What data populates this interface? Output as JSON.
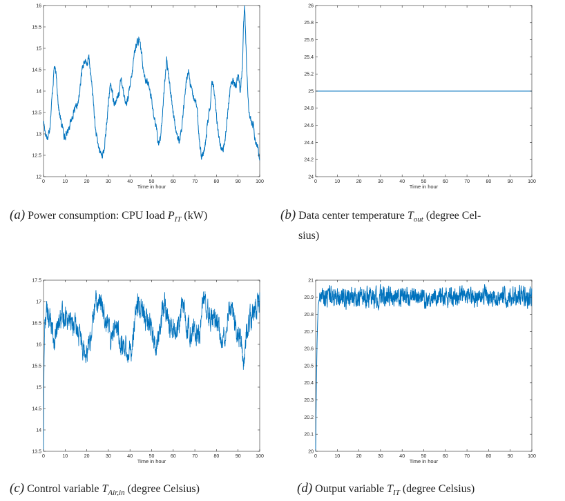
{
  "chart_data": [
    {
      "type": "line",
      "id": "a",
      "xlabel": "Time in hour",
      "xlim": [
        0,
        100
      ],
      "ylim": [
        12,
        16
      ],
      "xticks": [
        0,
        10,
        20,
        30,
        40,
        50,
        60,
        70,
        80,
        90,
        100
      ],
      "yticks": [
        "12",
        "12.5",
        "13",
        "13.5",
        "14",
        "14.5",
        "15",
        "15.5",
        "16"
      ],
      "yticks_values": [
        12,
        12.5,
        13,
        13.5,
        14,
        14.5,
        15,
        15.5,
        16
      ],
      "line_color": "#0072bd",
      "noise": 0.07,
      "series": [
        {
          "x": [
            0,
            1,
            2,
            3,
            4,
            5,
            6,
            7,
            8,
            9,
            10,
            12,
            14,
            16,
            17,
            18,
            19,
            20,
            21,
            22,
            23,
            24,
            25,
            26,
            27,
            28,
            29,
            30,
            31,
            32,
            33,
            34,
            35,
            36,
            37,
            38,
            39,
            40,
            41,
            42,
            43,
            44,
            45,
            46,
            47,
            48,
            49,
            50,
            51,
            52,
            53,
            54,
            55,
            56,
            57,
            58,
            59,
            60,
            61,
            62,
            63,
            64,
            65,
            66,
            67,
            68,
            69,
            70,
            71,
            72,
            73,
            74,
            75,
            76,
            77,
            78,
            79,
            80,
            81,
            82,
            83,
            84,
            85,
            86,
            87,
            88,
            89,
            90,
            91,
            92,
            92.5,
            93,
            94,
            95,
            96,
            97,
            98,
            99,
            100
          ],
          "y": [
            13.3,
            13.0,
            12.9,
            13.2,
            13.9,
            14.6,
            14.3,
            13.6,
            13.3,
            13.1,
            12.9,
            13.2,
            13.5,
            13.7,
            14.1,
            14.6,
            14.7,
            14.6,
            14.8,
            14.3,
            13.8,
            13.1,
            12.8,
            12.6,
            12.5,
            12.6,
            13.1,
            13.7,
            14.2,
            13.9,
            13.7,
            13.8,
            14.0,
            14.3,
            14.0,
            13.7,
            13.8,
            14.1,
            14.4,
            14.9,
            15.1,
            15.2,
            15.0,
            14.6,
            14.3,
            14.2,
            14.1,
            13.8,
            13.4,
            13.2,
            12.8,
            12.9,
            13.4,
            14.2,
            14.7,
            14.3,
            13.9,
            13.5,
            13.2,
            12.9,
            12.8,
            13.2,
            13.7,
            14.2,
            14.5,
            14.1,
            13.9,
            13.8,
            13.6,
            12.9,
            12.5,
            12.5,
            12.8,
            13.3,
            13.6,
            14.2,
            14.0,
            13.4,
            13.0,
            12.7,
            12.6,
            12.9,
            13.4,
            13.9,
            14.2,
            14.2,
            14.1,
            14.4,
            14.0,
            14.6,
            15.5,
            16.0,
            14.5,
            13.5,
            13.3,
            13.2,
            12.8,
            12.7,
            12.4
          ]
        }
      ]
    },
    {
      "type": "line",
      "id": "b",
      "xlabel": "Time in hour",
      "xlim": [
        0,
        100
      ],
      "ylim": [
        24,
        26
      ],
      "xticks": [
        0,
        10,
        20,
        30,
        40,
        50,
        60,
        70,
        80,
        90,
        100
      ],
      "yticks": [
        "24",
        "24.2",
        "24.4",
        "24.6",
        "24.8",
        "25",
        "25.2",
        "25.4",
        "25.6",
        "25.8",
        "26"
      ],
      "yticks_values": [
        24,
        24.2,
        24.4,
        24.6,
        24.8,
        25,
        25.2,
        25.4,
        25.6,
        25.8,
        26
      ],
      "line_color": "#0072bd",
      "noise": 0,
      "series": [
        {
          "x": [
            0,
            100
          ],
          "y": [
            25,
            25
          ]
        }
      ]
    },
    {
      "type": "line",
      "id": "c",
      "xlabel": "Time in hour",
      "xlim": [
        0,
        100
      ],
      "ylim": [
        13.5,
        17.5
      ],
      "xticks": [
        0,
        10,
        20,
        30,
        40,
        50,
        60,
        70,
        80,
        90,
        100
      ],
      "yticks": [
        "13.5",
        "14",
        "14.5",
        "15",
        "15.5",
        "16",
        "16.5",
        "17",
        "17.5"
      ],
      "yticks_values": [
        13.5,
        14,
        14.5,
        15,
        15.5,
        16,
        16.5,
        17,
        17.5
      ],
      "line_color": "#0072bd",
      "noise": 0.22,
      "series": [
        {
          "x": [
            0,
            0.3,
            0.6,
            1,
            2,
            3,
            4,
            5,
            6,
            7,
            8,
            9,
            10,
            12,
            14,
            16,
            17,
            18,
            19,
            20,
            21,
            22,
            23,
            24,
            25,
            26,
            27,
            28,
            29,
            30,
            31,
            32,
            33,
            34,
            35,
            36,
            37,
            38,
            39,
            40,
            41,
            42,
            43,
            44,
            45,
            46,
            47,
            48,
            49,
            50,
            51,
            52,
            53,
            54,
            55,
            56,
            57,
            58,
            59,
            60,
            61,
            62,
            63,
            64,
            65,
            66,
            67,
            68,
            69,
            70,
            71,
            72,
            73,
            74,
            75,
            76,
            77,
            78,
            79,
            80,
            81,
            82,
            83,
            84,
            85,
            86,
            87,
            88,
            89,
            90,
            91,
            92,
            92.5,
            93,
            94,
            95,
            96,
            97,
            98,
            99,
            100
          ],
          "y": [
            13.6,
            15.8,
            16.5,
            16.7,
            16.75,
            16.6,
            16.3,
            16.1,
            16.2,
            16.5,
            16.6,
            16.6,
            16.7,
            16.6,
            16.4,
            16.3,
            16.1,
            16.0,
            15.9,
            15.9,
            16.0,
            16.2,
            16.6,
            16.9,
            17.0,
            17.0,
            16.9,
            16.8,
            16.6,
            16.4,
            16.2,
            16.3,
            16.5,
            16.4,
            16.2,
            16.0,
            16.0,
            15.95,
            15.8,
            15.85,
            16.0,
            16.4,
            16.8,
            16.9,
            16.9,
            16.7,
            16.6,
            16.5,
            16.5,
            16.4,
            16.0,
            15.9,
            16.1,
            16.4,
            16.8,
            16.9,
            16.7,
            16.5,
            16.4,
            16.3,
            16.2,
            16.3,
            16.6,
            16.9,
            16.8,
            16.5,
            16.4,
            16.3,
            16.3,
            16.3,
            16.2,
            16.1,
            16.7,
            17.1,
            17.0,
            16.8,
            16.7,
            16.6,
            16.5,
            16.5,
            16.4,
            16.2,
            16.1,
            16.3,
            16.7,
            16.9,
            16.8,
            16.6,
            16.5,
            16.3,
            16.2,
            15.9,
            15.5,
            15.8,
            16.4,
            16.6,
            16.6,
            16.7,
            16.8,
            16.9,
            17.0
          ]
        }
      ]
    },
    {
      "type": "line",
      "id": "d",
      "xlabel": "Time in hour",
      "xlim": [
        0,
        100
      ],
      "ylim": [
        20,
        21
      ],
      "xticks": [
        0,
        10,
        20,
        30,
        40,
        50,
        60,
        70,
        80,
        90,
        100
      ],
      "yticks": [
        "20",
        "20.1",
        "20.2",
        "20.3",
        "20.4",
        "20.5",
        "20.6",
        "20.7",
        "20.8",
        "20.9",
        "21"
      ],
      "yticks_values": [
        20,
        20.1,
        20.2,
        20.3,
        20.4,
        20.5,
        20.6,
        20.7,
        20.8,
        20.9,
        21
      ],
      "line_color": "#0072bd",
      "noise": 0.045,
      "series": [
        {
          "x": [
            0,
            0.3,
            0.6,
            0.9,
            1.2,
            1.6,
            2,
            5,
            10,
            20,
            30,
            40,
            50,
            60,
            70,
            80,
            90,
            100
          ],
          "y": [
            20.0,
            20.35,
            20.6,
            20.75,
            20.85,
            20.88,
            20.9,
            20.9,
            20.9,
            20.9,
            20.9,
            20.9,
            20.9,
            20.9,
            20.9,
            20.9,
            20.9,
            20.9
          ]
        }
      ]
    }
  ],
  "captions": [
    {
      "letter": "(a)",
      "pre": "Power consumption: CPU load ",
      "var": "P",
      "sub": "IT",
      "post": " (kW)"
    },
    {
      "letter": "(b)",
      "pre": "Data center temperature ",
      "var": "T",
      "sub": "out",
      "post": " (degree Cel-",
      "line2": "sius)"
    },
    {
      "letter": "(c)",
      "pre": "Control variable ",
      "var": "T",
      "sub": "Air,in",
      "post": " (degree Celsius)"
    },
    {
      "letter": "(d)",
      "pre": "Output variable ",
      "var": "T",
      "sub": "IT",
      "post": " (degree Celsius)"
    }
  ]
}
